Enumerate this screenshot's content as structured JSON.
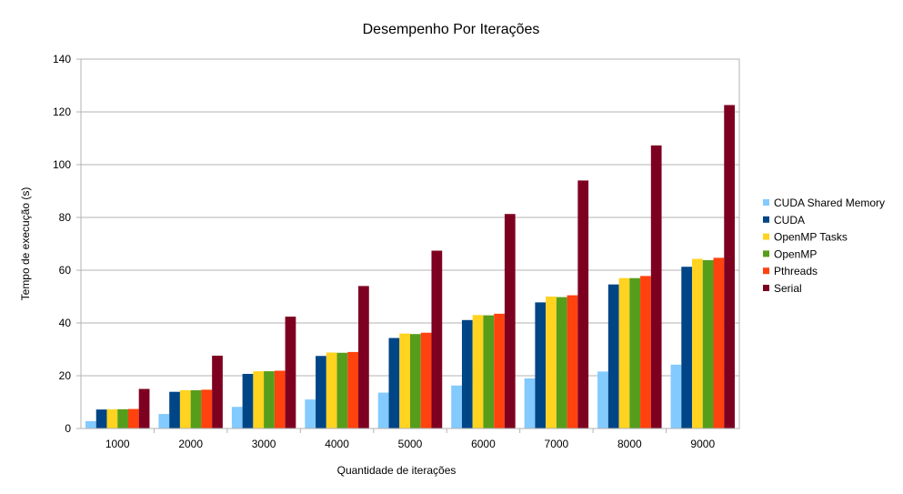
{
  "chart_data": {
    "type": "bar",
    "title": "Desempenho Por Iterações",
    "xlabel": "Quantidade de iterações",
    "ylabel": "Tempo de execução (s)",
    "ylim": [
      0,
      140
    ],
    "yticks": [
      0,
      20,
      40,
      60,
      80,
      100,
      120,
      140
    ],
    "grid": true,
    "legend": "right",
    "categories": [
      "1000",
      "2000",
      "3000",
      "4000",
      "5000",
      "6000",
      "7000",
      "8000",
      "9000"
    ],
    "series": [
      {
        "name": "CUDA Shared Memory",
        "color": "#83caff",
        "values": [
          2.8,
          5.5,
          8.2,
          11.0,
          13.6,
          16.3,
          19.0,
          21.6,
          24.2
        ]
      },
      {
        "name": "CUDA",
        "color": "#004586",
        "values": [
          7.2,
          13.9,
          20.7,
          27.5,
          34.3,
          41.1,
          47.8,
          54.6,
          61.3
        ]
      },
      {
        "name": "OpenMP Tasks",
        "color": "#ffd320",
        "values": [
          7.3,
          14.5,
          21.7,
          28.8,
          36.0,
          43.0,
          50.0,
          57.0,
          64.3
        ]
      },
      {
        "name": "OpenMP",
        "color": "#579d1c",
        "values": [
          7.3,
          14.5,
          21.7,
          28.7,
          35.8,
          42.9,
          49.8,
          57.0,
          63.8
        ]
      },
      {
        "name": "Pthreads",
        "color": "#ff420e",
        "values": [
          7.4,
          14.7,
          21.9,
          29.0,
          36.3,
          43.5,
          50.5,
          57.8,
          64.7
        ]
      },
      {
        "name": "Serial",
        "color": "#7e0021",
        "values": [
          15.0,
          27.6,
          42.4,
          54.0,
          67.4,
          81.3,
          94.0,
          107.3,
          122.6
        ]
      }
    ]
  }
}
